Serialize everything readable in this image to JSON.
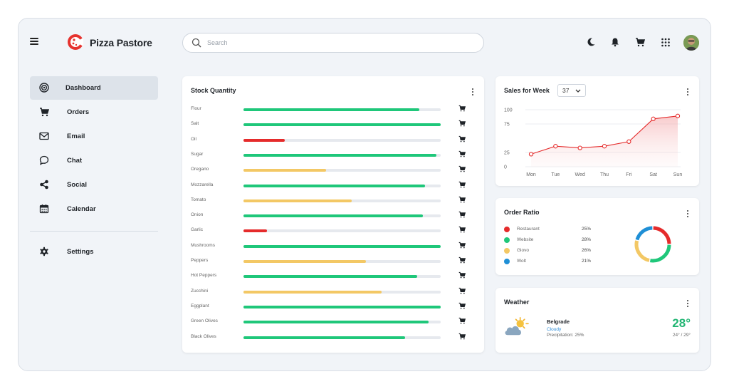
{
  "header": {
    "brand": "Pizza Pastore",
    "search_placeholder": "Search",
    "icons": [
      "menu-icon",
      "moon-icon",
      "bell-icon",
      "cart-icon",
      "apps-grid-icon",
      "avatar"
    ]
  },
  "sidebar": {
    "items": [
      {
        "label": "Dashboard",
        "icon": "target-icon",
        "active": true
      },
      {
        "label": "Orders",
        "icon": "cart-icon"
      },
      {
        "label": "Email",
        "icon": "envelope-icon"
      },
      {
        "label": "Chat",
        "icon": "chat-bubble-icon"
      },
      {
        "label": "Social",
        "icon": "share-icon"
      },
      {
        "label": "Calendar",
        "icon": "calendar-icon"
      }
    ],
    "settings": {
      "label": "Settings",
      "icon": "gear-icon"
    }
  },
  "colors": {
    "green": "#1fc77a",
    "red": "#e52b2b",
    "yellow": "#f3c865",
    "blue": "#1f8fd6",
    "brand_red": "#e6322e"
  },
  "stock": {
    "title": "Stock Quantity",
    "items": [
      {
        "name": "Flour",
        "level": 0.89,
        "status": "green"
      },
      {
        "name": "Salt",
        "level": 1.0,
        "status": "green"
      },
      {
        "name": "Oil",
        "level": 0.21,
        "status": "red"
      },
      {
        "name": "Sugar",
        "level": 0.98,
        "status": "green"
      },
      {
        "name": "Oregano",
        "level": 0.42,
        "status": "yellow"
      },
      {
        "name": "Mozzarella",
        "level": 0.92,
        "status": "green"
      },
      {
        "name": "Tomato",
        "level": 0.55,
        "status": "yellow"
      },
      {
        "name": "Onion",
        "level": 0.91,
        "status": "green"
      },
      {
        "name": "Garlic",
        "level": 0.12,
        "status": "red"
      },
      {
        "name": "Mushrooms",
        "level": 1.0,
        "status": "green"
      },
      {
        "name": "Peppers",
        "level": 0.62,
        "status": "yellow"
      },
      {
        "name": "Hot Peppers",
        "level": 0.88,
        "status": "green"
      },
      {
        "name": "Zucchini",
        "level": 0.7,
        "status": "yellow"
      },
      {
        "name": "Eggplant",
        "level": 1.0,
        "status": "green"
      },
      {
        "name": "Green Olives",
        "level": 0.94,
        "status": "green"
      },
      {
        "name": "Black Olives",
        "level": 0.82,
        "status": "green"
      }
    ]
  },
  "sales": {
    "title": "Sales for Week",
    "week": "37",
    "chart_data": {
      "type": "area",
      "categories": [
        "Mon",
        "Tue",
        "Wed",
        "Thu",
        "Fri",
        "Sat",
        "Sun"
      ],
      "values": [
        22,
        36,
        33,
        36,
        44,
        84,
        89
      ],
      "y_ticks": [
        "100",
        "75",
        "25",
        "0"
      ],
      "ylim": [
        0,
        100
      ],
      "grid": true
    }
  },
  "order_ratio": {
    "title": "Order Ratio",
    "chart_data": {
      "type": "pie",
      "categories": [
        "Restaurant",
        "Website",
        "Glovo",
        "Wolt"
      ],
      "values": [
        25,
        28,
        26,
        21
      ],
      "labels": [
        "25%",
        "28%",
        "26%",
        "21%"
      ],
      "colors": [
        "#e52b2b",
        "#1fc77a",
        "#f3c865",
        "#1f8fd6"
      ]
    }
  },
  "weather": {
    "title": "Weather",
    "city": "Belgrade",
    "condition": "Cloudy",
    "precipitation": "Precipitation: 25%",
    "temp": "28°",
    "range": "24° / 29°",
    "icon": "cloudy-sun-icon"
  }
}
